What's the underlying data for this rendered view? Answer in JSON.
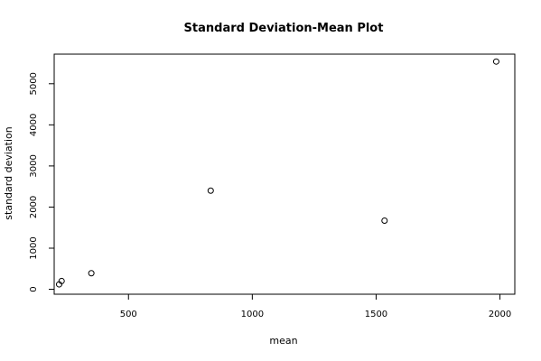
{
  "chart_data": {
    "type": "scatter",
    "title": "Standard Deviation-Mean Plot",
    "xlabel": "mean",
    "ylabel": "standard deviation",
    "xlim": [
      200,
      2060
    ],
    "ylim": [
      -120,
      5720
    ],
    "x_ticks": [
      500,
      1000,
      1500,
      2000
    ],
    "y_ticks": [
      0,
      1000,
      2000,
      3000,
      4000,
      5000
    ],
    "grid": false,
    "legend": "none",
    "points": [
      {
        "x": 220,
        "y": 120
      },
      {
        "x": 230,
        "y": 200
      },
      {
        "x": 350,
        "y": 390
      },
      {
        "x": 832,
        "y": 2400
      },
      {
        "x": 1534,
        "y": 1670
      },
      {
        "x": 1985,
        "y": 5540
      }
    ]
  }
}
